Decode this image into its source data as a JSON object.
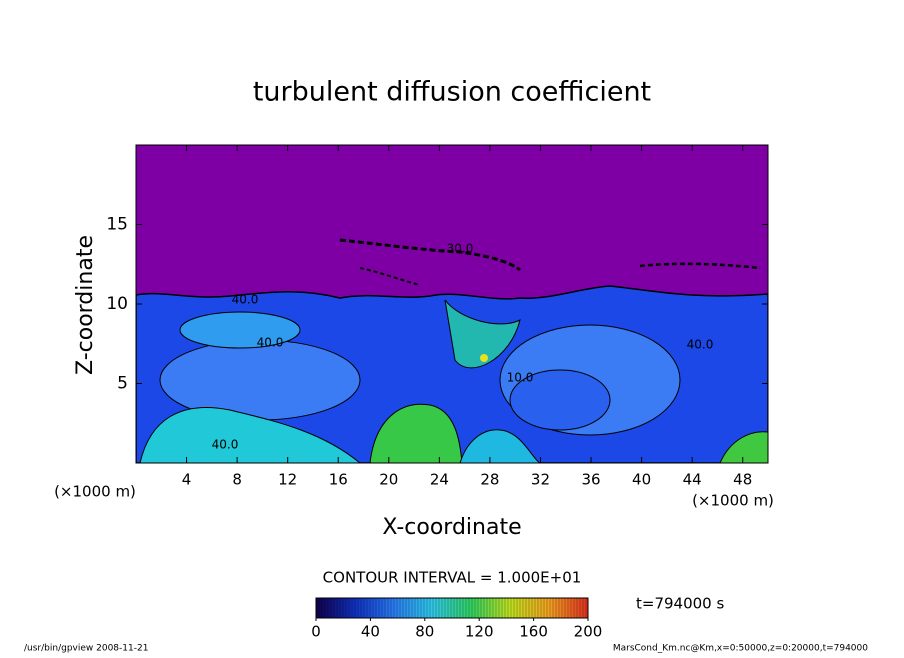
{
  "chart_data": {
    "type": "contour",
    "title": "turbulent diffusion coefficient",
    "x_label": "X-coordinate",
    "y_label": "Z-coordinate",
    "x_unit": "(×1000 m)",
    "y_unit": "(×1000 m)",
    "xlim": [
      0,
      50
    ],
    "xticks": [
      4,
      8,
      12,
      16,
      20,
      24,
      28,
      32,
      36,
      40,
      44,
      48
    ],
    "ylim": [
      0,
      20
    ],
    "yticks": [
      5,
      10,
      15
    ],
    "contour_interval": "CONTOUR INTERVAL = 1.000E+01",
    "time_label": "t=794000 s",
    "contour_labels": [
      "40.0",
      "30.0",
      "40.0",
      "40.0",
      "40.0",
      "10.0"
    ],
    "colorbar": {
      "lim": [
        0,
        200
      ],
      "ticks": [
        0,
        40,
        80,
        120,
        160,
        200
      ],
      "colors": [
        "#10004a",
        "#1030c0",
        "#2a7af0",
        "#30c8e8",
        "#30d060",
        "#c0e020",
        "#f0a020",
        "#e03020"
      ]
    }
  },
  "footer": {
    "left": "/usr/bin/gpview   2008-11-21",
    "right": "MarsCond_Km.nc@Km,x=0:50000,z=0:20000,t=794000"
  }
}
